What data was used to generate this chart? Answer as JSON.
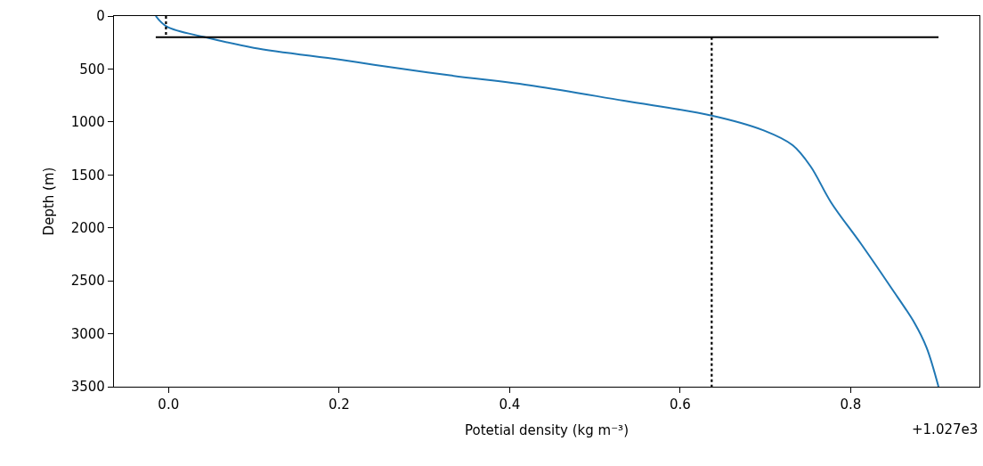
{
  "chart_data": {
    "type": "line",
    "xlabel": "Potetial density (kg m⁻³)",
    "ylabel": "Depth (m)",
    "annotations": [
      "+1.027e3"
    ],
    "series": [
      {
        "color": "#1f77b4",
        "line_style": "solid",
        "x": [
          -0.015,
          -0.002,
          0.043,
          0.1,
          0.2,
          0.241,
          0.33,
          0.429,
          0.534,
          0.637,
          0.698,
          0.732,
          0.753,
          0.777,
          0.812,
          0.847,
          0.875,
          0.889,
          0.903
        ],
        "values": [
          0,
          100,
          200,
          300,
          410,
          460,
          560,
          660,
          800,
          940,
          1080,
          1220,
          1420,
          1760,
          2150,
          2560,
          2900,
          3130,
          3500
        ]
      },
      {
        "color": "#000000",
        "line_style": "solid",
        "x": [
          -0.015,
          0.903
        ],
        "values": [
          200,
          200
        ]
      },
      {
        "color": "#000000",
        "line_style": "dotted",
        "x": [
          -0.003,
          -0.003
        ],
        "values": [
          0,
          200
        ]
      },
      {
        "color": "#000000",
        "line_style": "dotted",
        "x": [
          0.637,
          0.637
        ],
        "values": [
          200,
          3500
        ]
      }
    ],
    "xlim": [
      -0.064,
      0.951
    ],
    "xticks": [
      {
        "value": 0,
        "label": "0.0"
      },
      {
        "value": 0.2,
        "label": "0.2"
      },
      {
        "value": 0.4,
        "label": "0.4"
      },
      {
        "value": 0.6,
        "label": "0.6"
      },
      {
        "value": 0.8,
        "label": "0.8"
      }
    ],
    "ylim": [
      3500,
      0
    ],
    "yticks": [
      0,
      500,
      1000,
      1500,
      2000,
      2500,
      3000,
      3500
    ],
    "marker": "none"
  }
}
